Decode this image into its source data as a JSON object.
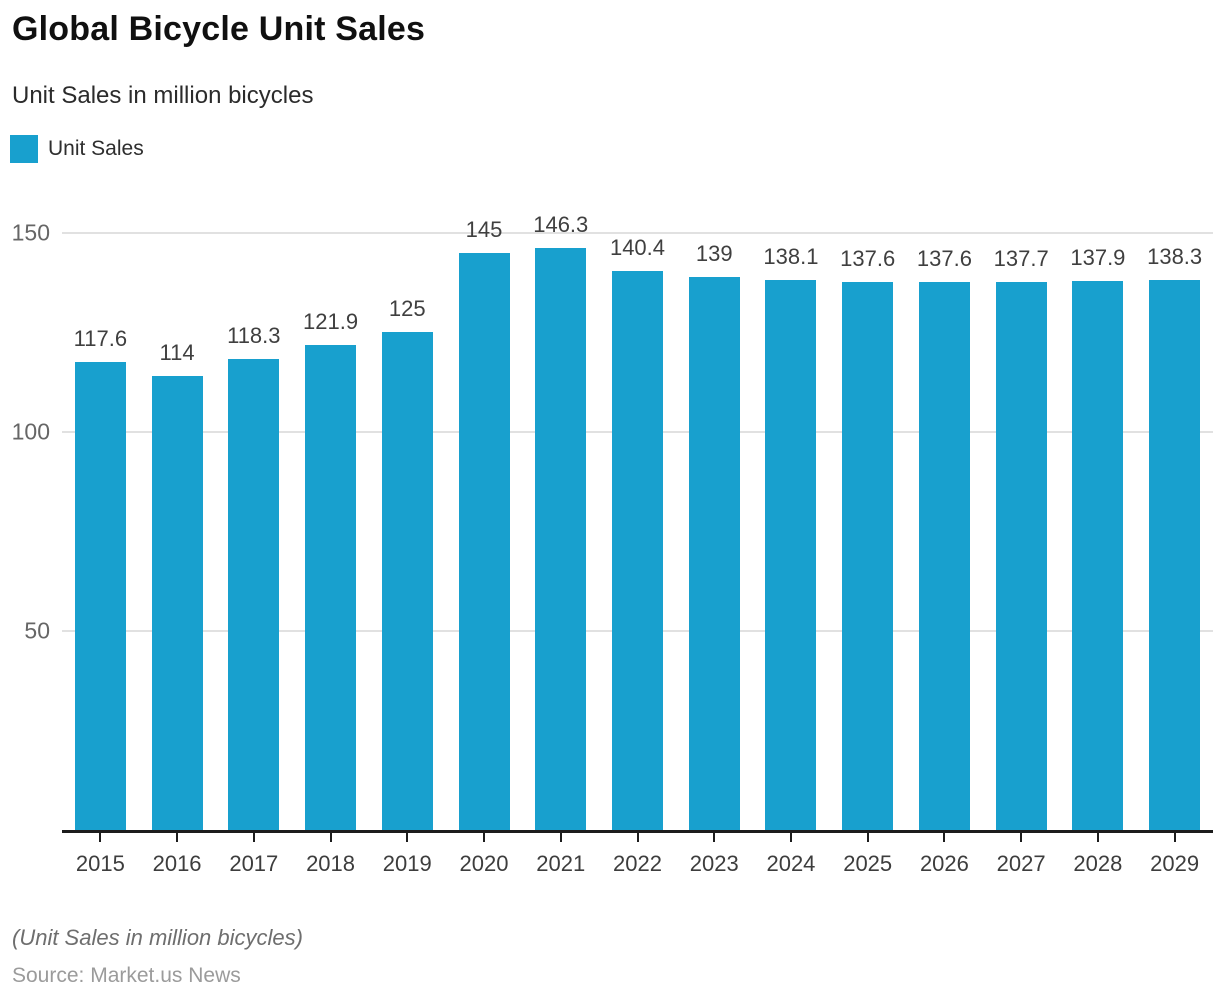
{
  "header": {
    "title": "Global Bicycle Unit Sales",
    "subtitle": "Unit Sales in million bicycles"
  },
  "legend": {
    "label": "Unit Sales",
    "color": "#18a0ce"
  },
  "chart_data": {
    "type": "bar",
    "title": "Global Bicycle Unit Sales",
    "subtitle": "Unit Sales in million bicycles",
    "series_name": "Unit Sales",
    "categories": [
      "2015",
      "2016",
      "2017",
      "2018",
      "2019",
      "2020",
      "2021",
      "2022",
      "2023",
      "2024",
      "2025",
      "2026",
      "2027",
      "2028",
      "2029"
    ],
    "values": [
      117.6,
      114,
      118.3,
      121.9,
      125,
      145,
      146.3,
      140.4,
      139,
      138.1,
      137.6,
      137.6,
      137.7,
      137.9,
      138.3
    ],
    "xlabel": "",
    "ylabel": "",
    "ylim": [
      0,
      150
    ],
    "yticks": [
      50,
      100,
      150
    ],
    "grid": true,
    "bar_color": "#18a0ce",
    "legend_position": "top-left"
  },
  "footer": {
    "note": "(Unit Sales in million bicycles)",
    "source": "Source: Market.us News"
  }
}
